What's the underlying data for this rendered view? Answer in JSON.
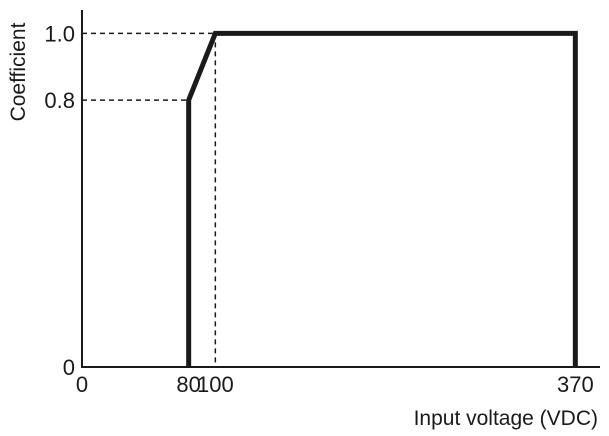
{
  "chart_data": {
    "type": "line",
    "title": "",
    "xlabel": "Input voltage (VDC)",
    "ylabel": "Coefficient",
    "xlim": [
      0,
      390
    ],
    "ylim": [
      0,
      1.1
    ],
    "x_ticks": [
      {
        "value": 0,
        "label": "0"
      },
      {
        "value": 80,
        "label": "80"
      },
      {
        "value": 100,
        "label": "100"
      },
      {
        "value": 370,
        "label": "370"
      }
    ],
    "y_ticks": [
      {
        "value": 0,
        "label": "0"
      },
      {
        "value": 0.8,
        "label": "0.8"
      },
      {
        "value": 1.0,
        "label": "1.0"
      }
    ],
    "series": [
      {
        "x": [
          80,
          80,
          100,
          370,
          370
        ],
        "y": [
          0,
          0.8,
          1.0,
          1.0,
          0
        ]
      }
    ],
    "reference_lines": [
      {
        "from": [
          0,
          1.0
        ],
        "to": [
          100,
          1.0
        ]
      },
      {
        "from": [
          0,
          0.8
        ],
        "to": [
          80,
          0.8
        ]
      },
      {
        "from": [
          100,
          1.0
        ],
        "to": [
          100,
          0
        ]
      }
    ],
    "grid": false,
    "legend": "none",
    "line_color": "#1a1a1a"
  }
}
